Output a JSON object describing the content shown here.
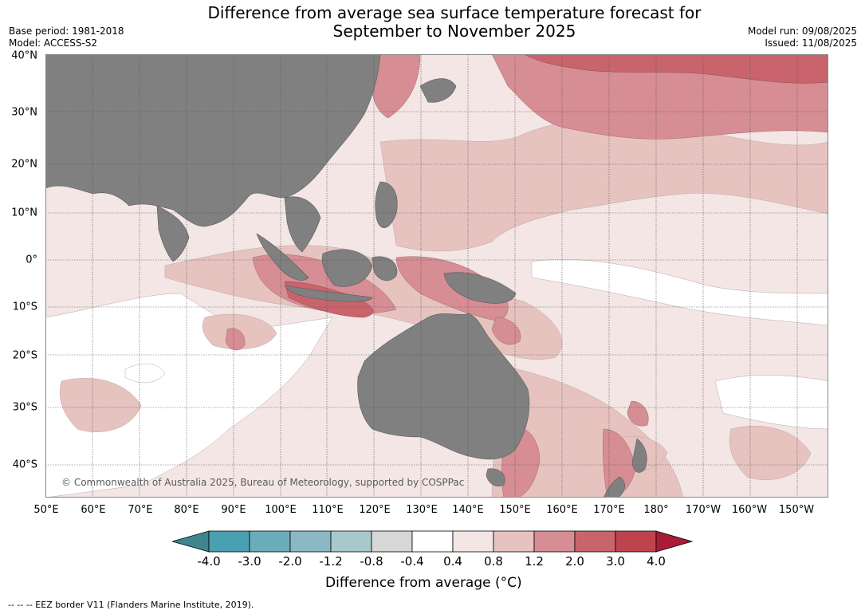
{
  "header": {
    "title_line1": "Difference from average sea surface temperature forecast for",
    "title_line2": "September to November 2025",
    "base_period": "Base period: 1981-2018",
    "model": "Model: ACCESS-S2",
    "model_run": "Model run: 09/08/2025",
    "issued": "Issued: 11/08/2025"
  },
  "map": {
    "lat_labels": [
      "40°N",
      "30°N",
      "20°N",
      "10°N",
      "0°",
      "10°S",
      "20°S",
      "30°S",
      "40°S"
    ],
    "lon_labels": [
      "50°E",
      "60°E",
      "70°E",
      "80°E",
      "90°E",
      "100°E",
      "110°E",
      "120°E",
      "130°E",
      "140°E",
      "150°E",
      "160°E",
      "170°E",
      "180°",
      "170°W",
      "160°W",
      "150°W"
    ],
    "copyright": "© Commonwealth of Australia 2025, Bureau of Meteorology, supported by COSPPac",
    "land_color": "#808080",
    "grid": true
  },
  "legend": {
    "ticks": [
      "-4.0",
      "-3.0",
      "-2.0",
      "-1.2",
      "-0.8",
      "-0.4",
      "0.4",
      "0.8",
      "1.2",
      "2.0",
      "3.0",
      "4.0"
    ],
    "colors": [
      "#3e858e",
      "#4aa0b2",
      "#6bacbb",
      "#8bb8c4",
      "#a8c8cc",
      "#d7d7d7",
      "#ffffff",
      "#f3e6e5",
      "#e7c3c0",
      "#d68d94",
      "#c9646c",
      "#bf434f",
      "#ac1b36"
    ],
    "label": "Difference from average (°C)"
  },
  "footer": {
    "eez_note": "--  --  -- EEZ border V11 (Flanders Marine Institute, 2019)."
  }
}
